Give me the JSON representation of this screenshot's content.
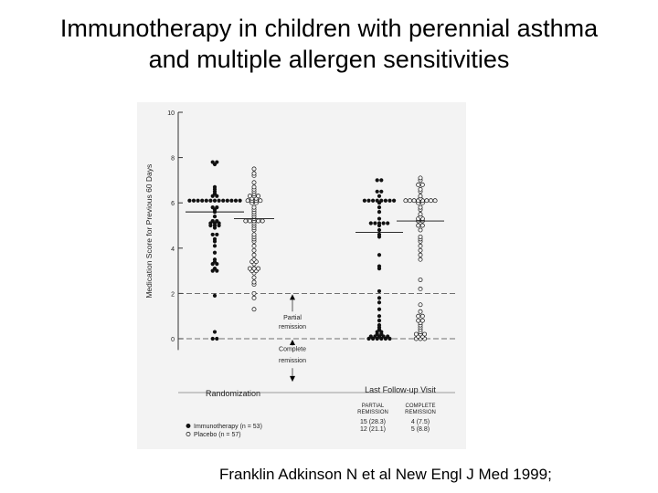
{
  "slide": {
    "title_line1": "Immunotherapy in children with perennial asthma",
    "title_line2": "and multiple allergen sensitivities",
    "citation": "Franklin Adkinson N et al New Engl J Med 1999;"
  },
  "chart_data": {
    "type": "scatter",
    "ylabel": "Medication Score for Previous 60 Days",
    "ylim": [
      -0.5,
      10
    ],
    "yticks": [
      0,
      2,
      4,
      6,
      8,
      10
    ],
    "threshold_lines": [
      2,
      0
    ],
    "annotations": {
      "partial_remission": [
        "Partial",
        "remission"
      ],
      "complete_remission": [
        "Complete",
        "remission"
      ]
    },
    "groups": [
      {
        "label": "Randomization"
      },
      {
        "label": "Last Follow-up Visit"
      }
    ],
    "table": {
      "headers": [
        [
          "PARTIAL",
          "REMISSION"
        ],
        [
          "COMPLETE",
          "REMISSION"
        ]
      ],
      "rows": [
        [
          "15 (28.3)",
          "4 (7.5)"
        ],
        [
          "12 (21.1)",
          "5 (8.8)"
        ]
      ]
    },
    "legend": [
      {
        "label": "Immunotherapy (n = 53)",
        "marker": "filled"
      },
      {
        "label": "Placebo (n = 57)",
        "marker": "open"
      }
    ],
    "series": [
      {
        "marker": "filled",
        "groups": [
          {
            "median": 5.6,
            "values": [
              7.8,
              7.8,
              7.7,
              6.7,
              6.6,
              6.5,
              6.4,
              6.3,
              6.3,
              6.1,
              6.1,
              6.1,
              6.1,
              6.1,
              6.1,
              6.1,
              6.1,
              6.1,
              6.1,
              6.1,
              6.1,
              6.1,
              5.8,
              5.8,
              5.7,
              5.6,
              5.4,
              5.2,
              5.2,
              5.1,
              5.1,
              5.1,
              5.0,
              5.0,
              5.0,
              4.9,
              4.6,
              4.6,
              4.4,
              4.3,
              4.1,
              3.8,
              3.5,
              3.4,
              3.3,
              3.3,
              3.1,
              3.0,
              3.0,
              1.9,
              0.3,
              0.0,
              0.0
            ]
          },
          {
            "median": 4.7,
            "values": [
              7.0,
              7.0,
              6.5,
              6.5,
              6.3,
              6.1,
              6.1,
              6.1,
              6.1,
              6.1,
              6.1,
              6.1,
              6.1,
              6.0,
              5.8,
              5.6,
              5.3,
              5.1,
              5.1,
              5.1,
              5.1,
              5.1,
              5.0,
              4.8,
              4.6,
              4.5,
              3.7,
              3.2,
              3.1,
              2.1,
              1.8,
              1.6,
              1.3,
              1.0,
              0.8,
              0.6,
              0.5,
              0.4,
              0.3,
              0.3,
              0.2,
              0.2,
              0.1,
              0.1,
              0.1,
              0.1,
              0.1,
              0.0,
              0.0,
              0.0,
              0.0,
              0.0,
              0.0
            ]
          }
        ]
      },
      {
        "marker": "open",
        "groups": [
          {
            "median": 5.3,
            "values": [
              7.5,
              7.3,
              7.2,
              6.9,
              6.7,
              6.6,
              6.5,
              6.4,
              6.3,
              6.3,
              6.3,
              6.2,
              6.2,
              6.1,
              6.1,
              6.1,
              6.1,
              6.0,
              6.0,
              5.8,
              5.7,
              5.6,
              5.5,
              5.4,
              5.3,
              5.2,
              5.2,
              5.2,
              5.2,
              5.2,
              5.1,
              5.0,
              4.9,
              4.8,
              4.6,
              4.5,
              4.4,
              4.3,
              4.1,
              3.9,
              3.7,
              3.5,
              3.4,
              3.4,
              3.3,
              3.1,
              3.1,
              3.1,
              3.0,
              3.0,
              2.9,
              2.7,
              2.5,
              2.4,
              2.0,
              1.8,
              1.3
            ]
          },
          {
            "median": 5.2,
            "values": [
              7.1,
              7.0,
              6.8,
              6.8,
              6.6,
              6.5,
              6.3,
              6.2,
              6.1,
              6.1,
              6.1,
              6.1,
              6.1,
              6.1,
              6.1,
              6.1,
              6.0,
              6.0,
              5.8,
              5.7,
              5.5,
              5.4,
              5.3,
              5.3,
              5.2,
              5.2,
              5.0,
              5.0,
              4.8,
              4.5,
              4.4,
              4.3,
              4.1,
              3.9,
              3.7,
              3.5,
              2.6,
              2.2,
              1.5,
              1.2,
              1.0,
              1.0,
              0.8,
              0.8,
              0.7,
              0.6,
              0.5,
              0.4,
              0.3,
              0.2,
              0.2,
              0.2,
              0.1,
              0.1,
              0.0,
              0.0,
              0.0
            ]
          }
        ]
      }
    ]
  }
}
